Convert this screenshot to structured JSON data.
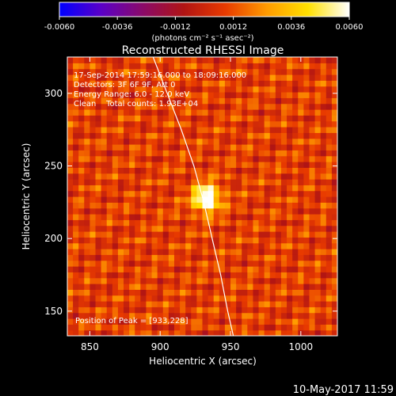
{
  "chart_data": {
    "type": "heatmap",
    "title": "Reconstructed RHESSI Image",
    "xlabel": "Heliocentric X (arcsec)",
    "ylabel": "Heliocentric Y (arcsec)",
    "xlim": [
      834,
      1026
    ],
    "ylim": [
      133,
      325
    ],
    "x_ticks": [
      850,
      900,
      950,
      1000
    ],
    "y_ticks": [
      150,
      200,
      250,
      300
    ],
    "colorbar": {
      "min": -0.006,
      "max": 0.006,
      "ticks": [
        "-0.0060",
        "-0.0036",
        "-0.0012",
        "0.0012",
        "0.0036",
        "0.0060"
      ],
      "tick_values": [
        -0.006,
        -0.0036,
        -0.0012,
        0.0012,
        0.0036,
        0.006
      ],
      "unit_label": "(photons cm⁻² s⁻¹ asec⁻²)",
      "colors": [
        "#0000ff",
        "#5a00c8",
        "#8a0a6a",
        "#b01414",
        "#e83a00",
        "#ff9a00",
        "#ffe000",
        "#ffffff"
      ]
    },
    "peak": {
      "x": 933,
      "y": 228
    },
    "limb_curve": [
      [
        895,
        325
      ],
      [
        905,
        300
      ],
      [
        915,
        275
      ],
      [
        924,
        250
      ],
      [
        931,
        225
      ],
      [
        937,
        200
      ],
      [
        943,
        175
      ],
      [
        948,
        150
      ],
      [
        952,
        133
      ]
    ],
    "grid": false,
    "legend": "none"
  },
  "info": {
    "time_range": "17-Sep-2014 17:59:16.000 to 18:09:16.000",
    "detectors": "Detectors: 3F 6F 9F, Att 0",
    "energy": "Energy Range: 6.0 - 12.0 keV",
    "method": "Clean    Total counts: 1.93E+04",
    "peak_text": "Position of Peak = [933,228]"
  },
  "footer_date": "10-May-2017 11:59"
}
